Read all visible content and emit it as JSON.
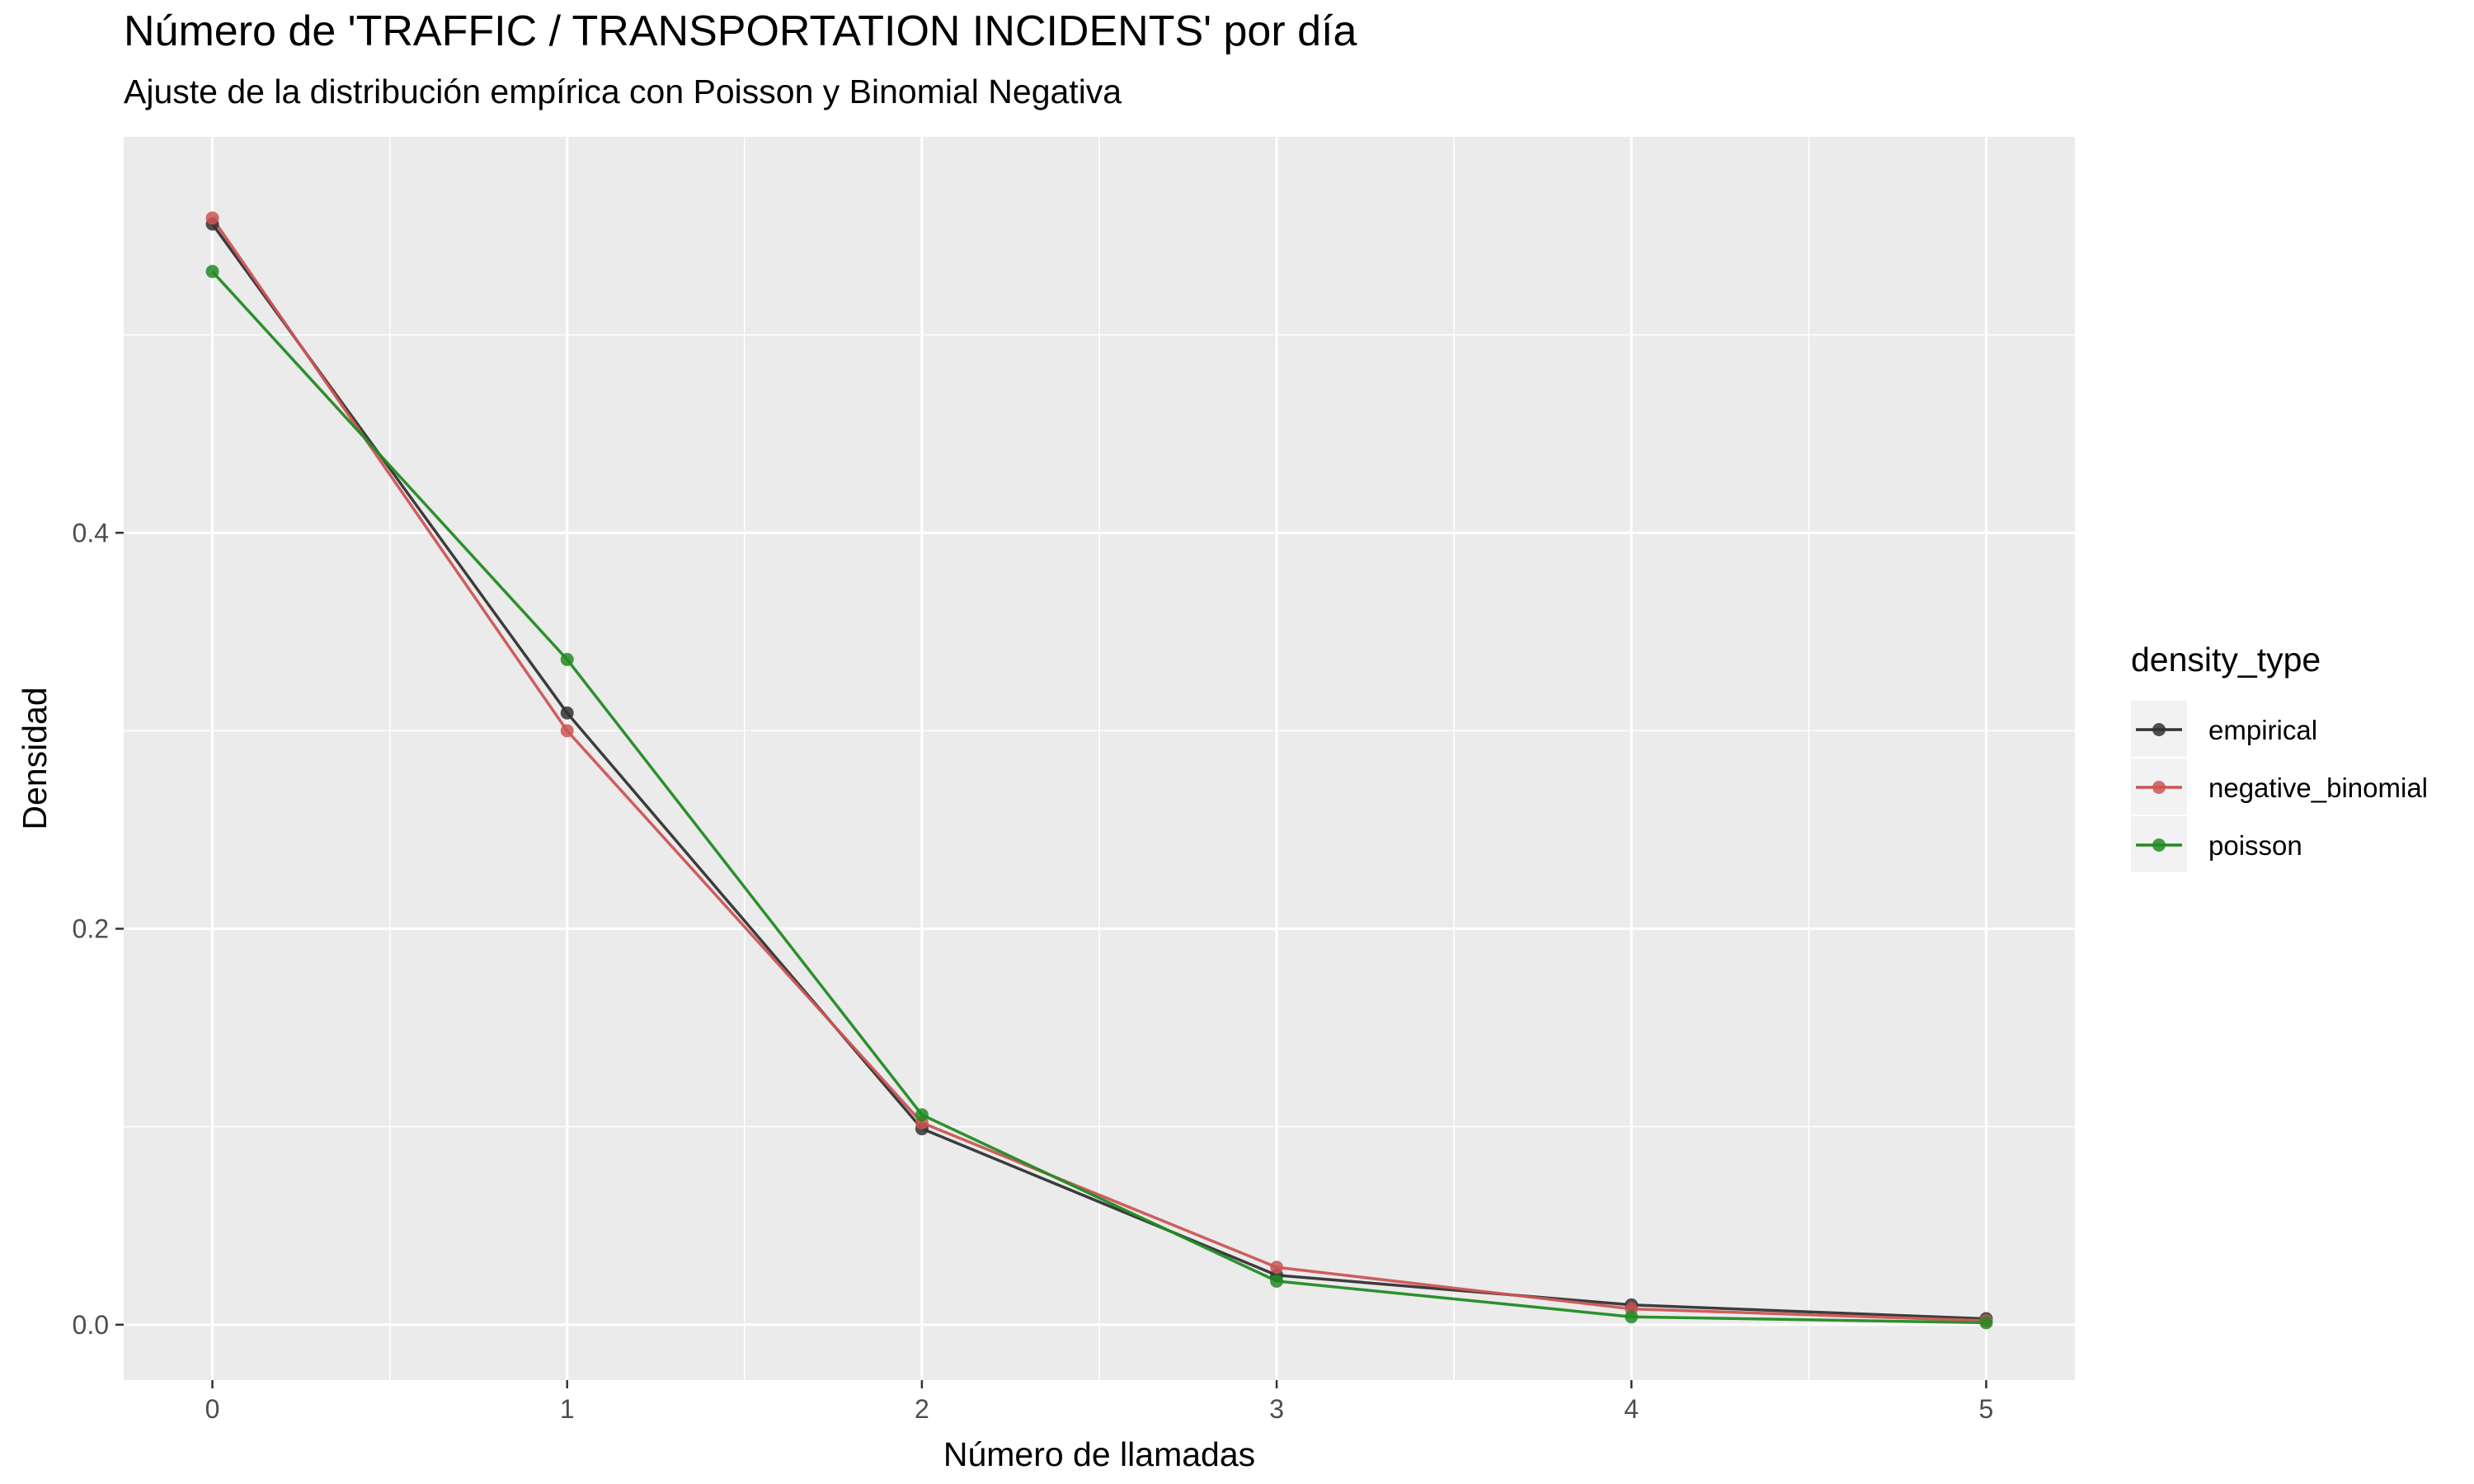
{
  "chart_data": {
    "type": "line",
    "title": "Número de 'TRAFFIC / TRANSPORTATION INCIDENTS' por día",
    "subtitle": "Ajuste de la distribución empírica con Poisson y Binomial Negativa",
    "xlabel": "Número de llamadas",
    "ylabel": "Densidad",
    "x": [
      0,
      1,
      2,
      3,
      4,
      5
    ],
    "xlim": [
      -0.25,
      5.25
    ],
    "ylim": [
      -0.028,
      0.6
    ],
    "x_ticks": [
      "0",
      "1",
      "2",
      "3",
      "4",
      "5"
    ],
    "y_ticks": [
      "0.0",
      "0.2",
      "0.4"
    ],
    "y_tick_values": [
      0.0,
      0.2,
      0.4
    ],
    "grid": true,
    "legend": {
      "title": "density_type",
      "position": "right"
    },
    "series": [
      {
        "name": "empirical",
        "color": "#333333",
        "values": [
          0.556,
          0.309,
          0.099,
          0.025,
          0.01,
          0.003
        ]
      },
      {
        "name": "negative_binomial",
        "color": "#cd5555",
        "values": [
          0.559,
          0.3,
          0.102,
          0.029,
          0.008,
          0.002
        ]
      },
      {
        "name": "poisson",
        "color": "#228b22",
        "values": [
          0.532,
          0.336,
          0.106,
          0.022,
          0.004,
          0.001
        ]
      }
    ]
  }
}
